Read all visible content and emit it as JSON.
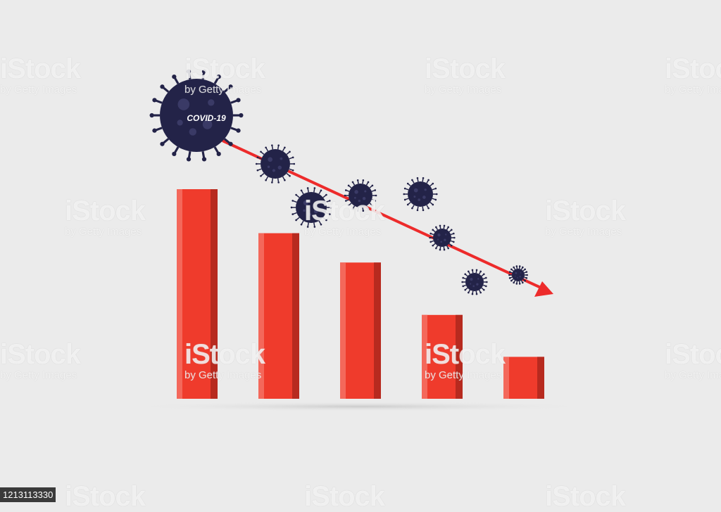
{
  "chart_data": {
    "type": "bar",
    "title": "",
    "xlabel": "",
    "ylabel": "",
    "categories": [
      "",
      "",
      "",
      "",
      ""
    ],
    "values": [
      100,
      79,
      65,
      40,
      20
    ],
    "ylim": [
      0,
      100
    ],
    "grid": false,
    "legend": "none",
    "bar_color": "#ef3b2c",
    "bar_shade_color": "#b72a1f",
    "bar_highlight_color": "#f4685b",
    "trend_arrow_color": "#ed2b2b",
    "virus_color": "#232348",
    "virus_label": "COVID-19"
  },
  "watermark": {
    "brand": "iStock",
    "credit": "by Getty Images",
    "stock_id": "1213113330"
  },
  "background_color": "#ebebeb"
}
